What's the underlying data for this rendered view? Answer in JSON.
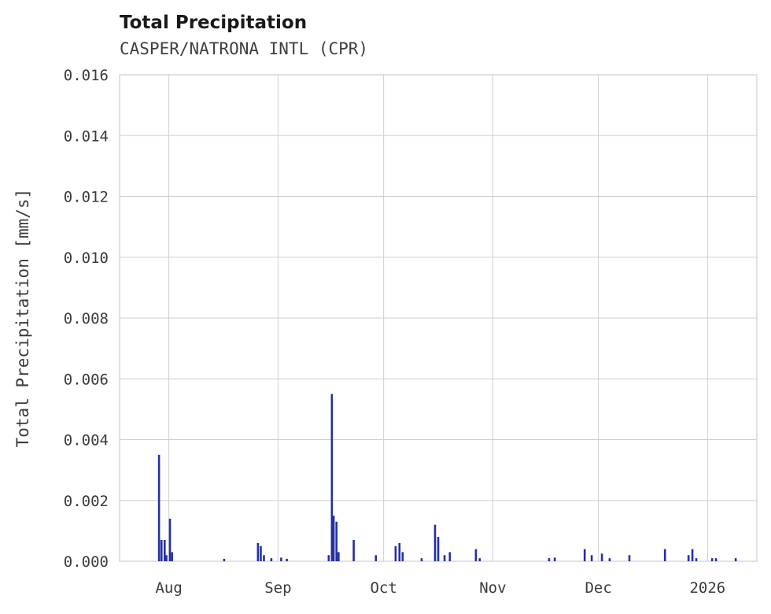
{
  "header": {
    "title": "Total Precipitation",
    "subtitle": "CASPER/NATRONA INTL (CPR)"
  },
  "colors": {
    "bar": "#2430a4",
    "grid": "#cfcfcf",
    "tick_text": "#3b3b3b",
    "title_text": "#1a1a1a"
  },
  "chart_data": {
    "type": "bar",
    "title": "Total Precipitation",
    "subtitle": "CASPER/NATRONA INTL (CPR)",
    "xlabel": "",
    "ylabel": "Total Precipitation [mm/s]",
    "ylim": [
      0,
      0.016
    ],
    "grid": true,
    "legend": false,
    "y_ticks": [
      {
        "label": "0.000",
        "value": 0.0
      },
      {
        "label": "0.002",
        "value": 0.002
      },
      {
        "label": "0.004",
        "value": 0.004
      },
      {
        "label": "0.006",
        "value": 0.006
      },
      {
        "label": "0.008",
        "value": 0.008
      },
      {
        "label": "0.010",
        "value": 0.01
      },
      {
        "label": "0.012",
        "value": 0.012
      },
      {
        "label": "0.014",
        "value": 0.014
      },
      {
        "label": "0.016",
        "value": 0.016
      }
    ],
    "x_axis": {
      "unit": "days since 2025-07-18",
      "range": [
        0,
        181
      ]
    },
    "x_ticks": [
      {
        "label": "Aug",
        "day": 14
      },
      {
        "label": "Sep",
        "day": 45
      },
      {
        "label": "Oct",
        "day": 75
      },
      {
        "label": "Nov",
        "day": 106
      },
      {
        "label": "Dec",
        "day": 136
      },
      {
        "label": "2026",
        "day": 167
      }
    ],
    "points": [
      [
        11.2,
        0.0035
      ],
      [
        11.9,
        0.0007
      ],
      [
        12.8,
        0.0007
      ],
      [
        13.3,
        0.0002
      ],
      [
        14.3,
        0.0014
      ],
      [
        14.9,
        0.0003
      ],
      [
        29.7,
        8e-05
      ],
      [
        39.3,
        0.0006
      ],
      [
        40.1,
        0.0005
      ],
      [
        41.0,
        0.0002
      ],
      [
        43.1,
        0.0001
      ],
      [
        45.9,
        0.00012
      ],
      [
        47.5,
        8e-05
      ],
      [
        59.4,
        0.0002
      ],
      [
        60.3,
        0.0055
      ],
      [
        60.8,
        0.0015
      ],
      [
        61.6,
        0.0013
      ],
      [
        62.2,
        0.0003
      ],
      [
        66.5,
        0.0007
      ],
      [
        72.8,
        0.0002
      ],
      [
        78.4,
        0.0005
      ],
      [
        79.5,
        0.0006
      ],
      [
        80.4,
        0.0003
      ],
      [
        85.8,
        0.0001
      ],
      [
        89.6,
        0.0012
      ],
      [
        90.5,
        0.0008
      ],
      [
        92.3,
        0.0002
      ],
      [
        93.8,
        0.0003
      ],
      [
        101.2,
        0.0004
      ],
      [
        102.3,
        0.0001
      ],
      [
        122.0,
        0.0001
      ],
      [
        123.6,
        0.00012
      ],
      [
        132.1,
        0.0004
      ],
      [
        134.1,
        0.0002
      ],
      [
        137.0,
        0.00025
      ],
      [
        139.2,
        0.0001
      ],
      [
        144.8,
        0.0002
      ],
      [
        154.9,
        0.0004
      ],
      [
        161.6,
        0.0002
      ],
      [
        162.7,
        0.0004
      ],
      [
        163.8,
        0.0001
      ],
      [
        168.3,
        0.0001
      ],
      [
        169.4,
        0.0001
      ],
      [
        175.0,
        0.0001
      ]
    ]
  }
}
